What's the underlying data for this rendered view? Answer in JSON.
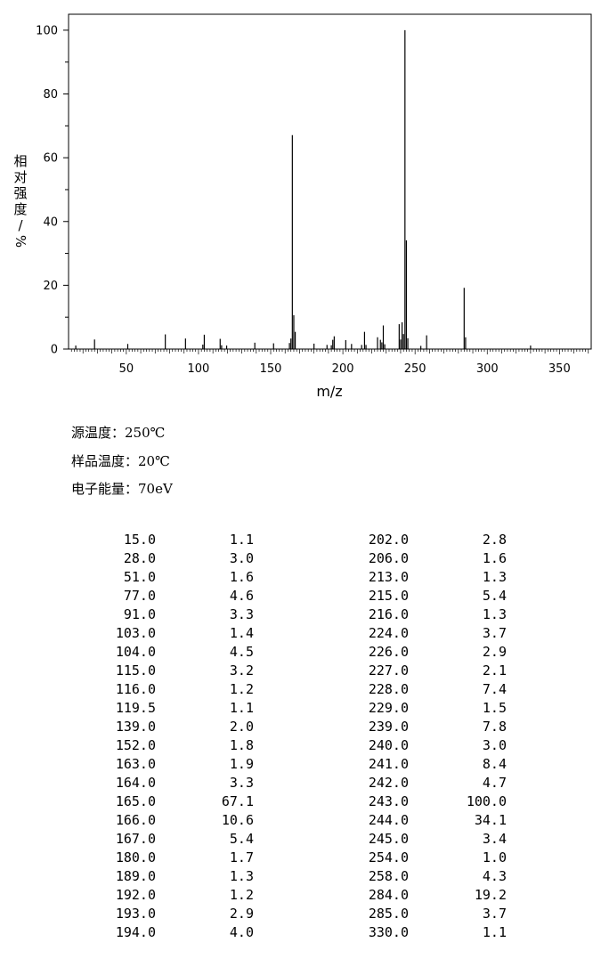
{
  "chart_data": {
    "type": "bar",
    "xlabel": "m/z",
    "ylabel": "相对强度/%",
    "xlim": [
      10,
      372
    ],
    "ylim": [
      0,
      105
    ],
    "x_ticks": [
      50,
      100,
      150,
      200,
      250,
      300,
      350
    ],
    "y_ticks": [
      0,
      20,
      40,
      60,
      80,
      100
    ],
    "grid": false,
    "peaks": [
      [
        15.0,
        1.1
      ],
      [
        28.0,
        3.0
      ],
      [
        51.0,
        1.6
      ],
      [
        77.0,
        4.6
      ],
      [
        91.0,
        3.3
      ],
      [
        103.0,
        1.4
      ],
      [
        104.0,
        4.5
      ],
      [
        115.0,
        3.2
      ],
      [
        116.0,
        1.2
      ],
      [
        119.5,
        1.1
      ],
      [
        139.0,
        2.0
      ],
      [
        152.0,
        1.8
      ],
      [
        163.0,
        1.9
      ],
      [
        164.0,
        3.3
      ],
      [
        165.0,
        67.1
      ],
      [
        166.0,
        10.6
      ],
      [
        167.0,
        5.4
      ],
      [
        180.0,
        1.7
      ],
      [
        189.0,
        1.3
      ],
      [
        192.0,
        1.2
      ],
      [
        193.0,
        2.9
      ],
      [
        194.0,
        4.0
      ],
      [
        202.0,
        2.8
      ],
      [
        206.0,
        1.6
      ],
      [
        213.0,
        1.3
      ],
      [
        215.0,
        5.4
      ],
      [
        216.0,
        1.3
      ],
      [
        224.0,
        3.7
      ],
      [
        226.0,
        2.9
      ],
      [
        227.0,
        2.1
      ],
      [
        228.0,
        7.4
      ],
      [
        229.0,
        1.5
      ],
      [
        239.0,
        7.8
      ],
      [
        240.0,
        3.0
      ],
      [
        241.0,
        8.4
      ],
      [
        242.0,
        4.7
      ],
      [
        243.0,
        100.0
      ],
      [
        244.0,
        34.1
      ],
      [
        245.0,
        3.4
      ],
      [
        254.0,
        1.0
      ],
      [
        258.0,
        4.3
      ],
      [
        284.0,
        19.2
      ],
      [
        285.0,
        3.7
      ],
      [
        330.0,
        1.1
      ]
    ]
  },
  "conditions": [
    {
      "label": "源温度：",
      "value": "250℃"
    },
    {
      "label": "样品温度：",
      "value": "20℃"
    },
    {
      "label": "电子能量：",
      "value": "70eV"
    }
  ],
  "table": {
    "left": [
      [
        "15.0",
        "1.1"
      ],
      [
        "28.0",
        "3.0"
      ],
      [
        "51.0",
        "1.6"
      ],
      [
        "77.0",
        "4.6"
      ],
      [
        "91.0",
        "3.3"
      ],
      [
        "103.0",
        "1.4"
      ],
      [
        "104.0",
        "4.5"
      ],
      [
        "115.0",
        "3.2"
      ],
      [
        "116.0",
        "1.2"
      ],
      [
        "119.5",
        "1.1"
      ],
      [
        "139.0",
        "2.0"
      ],
      [
        "152.0",
        "1.8"
      ],
      [
        "163.0",
        "1.9"
      ],
      [
        "164.0",
        "3.3"
      ],
      [
        "165.0",
        "67.1"
      ],
      [
        "166.0",
        "10.6"
      ],
      [
        "167.0",
        "5.4"
      ],
      [
        "180.0",
        "1.7"
      ],
      [
        "189.0",
        "1.3"
      ],
      [
        "192.0",
        "1.2"
      ],
      [
        "193.0",
        "2.9"
      ],
      [
        "194.0",
        "4.0"
      ]
    ],
    "right": [
      [
        "202.0",
        "2.8"
      ],
      [
        "206.0",
        "1.6"
      ],
      [
        "213.0",
        "1.3"
      ],
      [
        "215.0",
        "5.4"
      ],
      [
        "216.0",
        "1.3"
      ],
      [
        "224.0",
        "3.7"
      ],
      [
        "226.0",
        "2.9"
      ],
      [
        "227.0",
        "2.1"
      ],
      [
        "228.0",
        "7.4"
      ],
      [
        "229.0",
        "1.5"
      ],
      [
        "239.0",
        "7.8"
      ],
      [
        "240.0",
        "3.0"
      ],
      [
        "241.0",
        "8.4"
      ],
      [
        "242.0",
        "4.7"
      ],
      [
        "243.0",
        "100.0"
      ],
      [
        "244.0",
        "34.1"
      ],
      [
        "245.0",
        "3.4"
      ],
      [
        "254.0",
        "1.0"
      ],
      [
        "258.0",
        "4.3"
      ],
      [
        "284.0",
        "19.2"
      ],
      [
        "285.0",
        "3.7"
      ],
      [
        "330.0",
        "1.1"
      ]
    ]
  }
}
